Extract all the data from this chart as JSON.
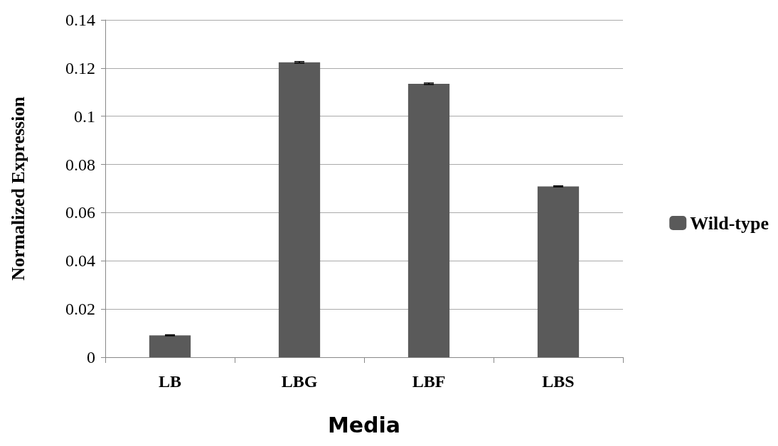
{
  "chart_data": {
    "type": "bar",
    "xlabel": "Media",
    "ylabel": "Normalized Expression",
    "categories": [
      "LB",
      "LBG",
      "LBF",
      "LBS"
    ],
    "series": [
      {
        "name": "Wild-type",
        "color": "#5a5a5a",
        "values": [
          0.0091,
          0.1224,
          0.1135,
          0.0709
        ],
        "errors": [
          0.0002,
          0.0003,
          0.0003,
          0.0002
        ]
      }
    ],
    "ylim": [
      0,
      0.14
    ],
    "yticks": [
      0,
      0.02,
      0.04,
      0.06,
      0.08,
      0.1,
      0.12,
      0.14
    ],
    "grid": "y",
    "legend": "right"
  }
}
